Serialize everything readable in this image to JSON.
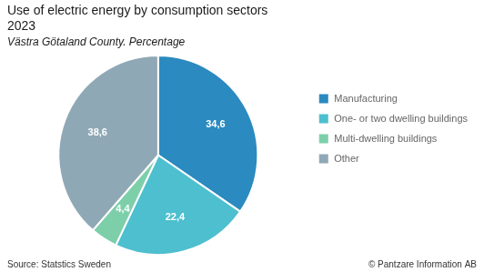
{
  "chart_data": {
    "type": "pie",
    "title": [
      "Use of electric energy by consumption sectors",
      "2023"
    ],
    "subtitle": "Västra Götaland County. Percentage",
    "categories": [
      "Manufacturing",
      "One- or two dwelling buildings",
      "Multi-dwelling buildings",
      "Other"
    ],
    "values": [
      34.6,
      22.4,
      4.4,
      38.6
    ],
    "value_labels": [
      "34,6",
      "22,4",
      "4,4",
      "38,6"
    ],
    "data_labels": true,
    "colors": [
      "#2b8abf",
      "#4dbfcf",
      "#7dcfaa",
      "#8fa8b5"
    ],
    "legend": "right",
    "annotations": [
      "Source: Statstics Sweden",
      "© Pantzare Information AB"
    ]
  }
}
